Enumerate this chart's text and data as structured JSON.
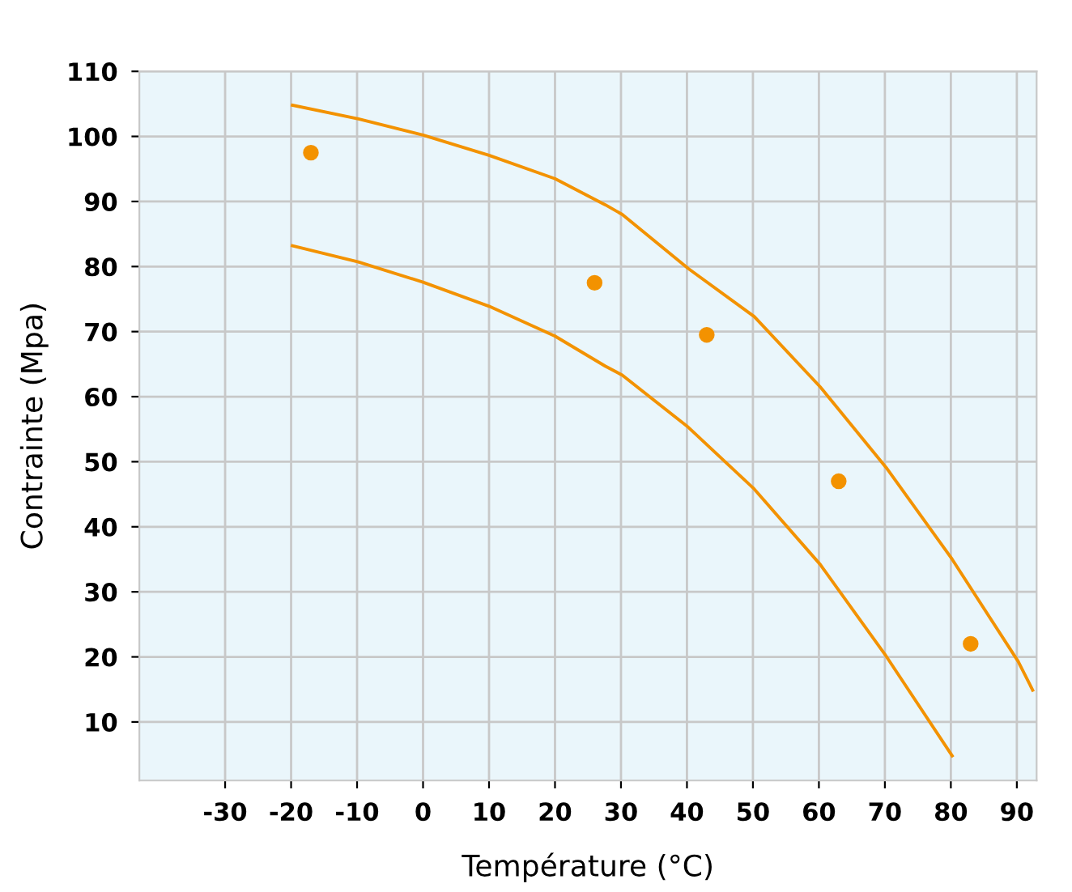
{
  "chart_data": {
    "type": "line",
    "xlabel": "Température (°C)",
    "ylabel": "Contrainte (Mpa)",
    "xlim": [
      -43,
      93
    ],
    "ylim": [
      1,
      110
    ],
    "xticks": [
      -30,
      -20,
      -10,
      0,
      10,
      20,
      30,
      40,
      50,
      60,
      70,
      80,
      90
    ],
    "yticks": [
      10,
      20,
      30,
      40,
      50,
      60,
      70,
      80,
      90,
      100,
      110
    ],
    "grid": true,
    "marker": "none",
    "line_style": "solid",
    "series": [
      {
        "color": "#f39200",
        "x": [
          -19.8,
          -9.8,
          0,
          10,
          20,
          27.6,
          30.2,
          40.2,
          50.2,
          60.2,
          70.2,
          80.2,
          90.2,
          92.4
        ],
        "values": [
          104.8,
          102.7,
          100.2,
          97.1,
          93.5,
          89.5,
          88,
          79.7,
          72.3,
          61.5,
          49.1,
          35,
          19.3,
          14.9
        ]
      },
      {
        "color": "#f39200",
        "x": [
          -19.8,
          -9.8,
          0,
          10,
          20,
          27.6,
          30.2,
          40.2,
          50.2,
          60.2,
          70.2,
          80.2
        ],
        "values": [
          83.2,
          80.7,
          77.6,
          73.9,
          69.3,
          64.7,
          63.3,
          55.3,
          45.8,
          34.2,
          20.1,
          4.8
        ]
      },
      {
        "type": "scatter",
        "color": "#f39200",
        "marker": "circle",
        "x": [
          -17,
          26,
          43,
          63,
          83
        ],
        "values": [
          97.5,
          77.5,
          69.5,
          47,
          22
        ]
      }
    ]
  }
}
